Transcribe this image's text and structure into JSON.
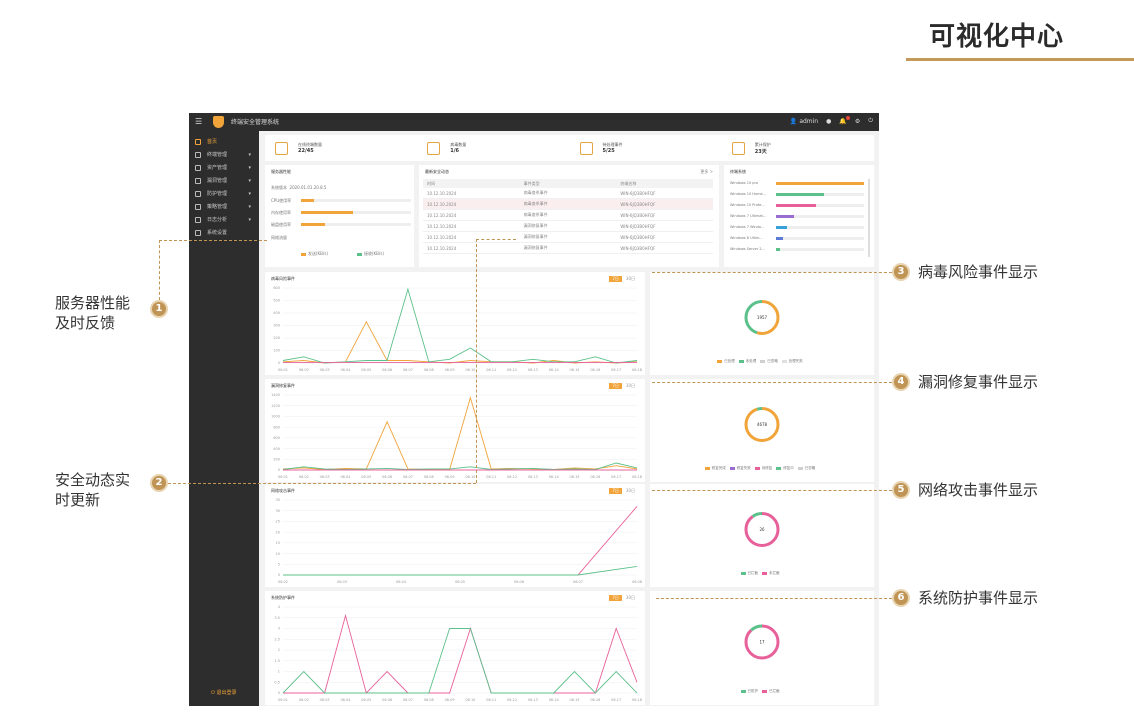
{
  "page": {
    "title": "可视化中心"
  },
  "app": {
    "name": "终端安全管理系统",
    "topbar": {
      "user": "admin",
      "icons": [
        "menu-icon",
        "logo-icon",
        "user-icon",
        "dot-icon",
        "bell-icon",
        "gear-icon",
        "power-icon"
      ]
    }
  },
  "sidebar": {
    "items": [
      {
        "label": "首页",
        "active": true
      },
      {
        "label": "终端管理",
        "caret": "▾"
      },
      {
        "label": "资产管理",
        "caret": "▾"
      },
      {
        "label": "漏洞管理",
        "caret": "▾"
      },
      {
        "label": "防护管理",
        "caret": "▾"
      },
      {
        "label": "策略管理",
        "caret": "▾"
      },
      {
        "label": "日志分析",
        "caret": "▾"
      },
      {
        "label": "系统设置"
      }
    ],
    "logout": "退出登录"
  },
  "stats": [
    {
      "label": "在线终端数量",
      "value": "22/45"
    },
    {
      "label": "病毒数量",
      "value": "1/6"
    },
    {
      "label": "待处理事件",
      "value": "5/25"
    },
    {
      "label": "累计保护",
      "value": "23天"
    }
  ],
  "server_panel": {
    "title": "服务器性能",
    "rows": [
      {
        "label": "系统版本",
        "value": "2020.01.01.20.8.5"
      },
      {
        "label": "CPU使用率",
        "fill": 0.12
      },
      {
        "label": "内存使用率",
        "fill": 0.47
      },
      {
        "label": "磁盘使用率",
        "fill": 0.22
      },
      {
        "label": "网络流量"
      }
    ],
    "legend": [
      "发送(KB/s)",
      "接收(KB/s)"
    ]
  },
  "dynamics_panel": {
    "title": "最新安全动态",
    "more": "更多 >",
    "headers": [
      "时间",
      "事件类型",
      "终端名称"
    ],
    "rows": [
      [
        "10.12.10.2024",
        "病毒查杀事件",
        "WIN-6JQ3B0HFQF"
      ],
      [
        "10.12.10.2024",
        "病毒查杀事件",
        "WIN-6JQ3B0HFQF"
      ],
      [
        "10.12.10.2024",
        "病毒查杀事件",
        "WIN-6JQ3B0HFQF"
      ],
      [
        "10.12.10.2024",
        "漏洞修复事件",
        "WIN-6JQ3B0HFQF"
      ],
      [
        "10.12.10.2024",
        "漏洞修复事件",
        "WIN-6JQ3B0HFQF"
      ],
      [
        "10.12.10.2024",
        "漏洞修复事件",
        "WIN-6JQ3B0HFQF"
      ]
    ]
  },
  "os_panel": {
    "title": "终端系统",
    "rows": [
      {
        "label": "Windows 10 pro",
        "fill": 1.0,
        "color": "#f0a43a"
      },
      {
        "label": "Windows 10 Home...",
        "fill": 0.55,
        "color": "#5cc08a"
      },
      {
        "label": "Windows 10 Profe...",
        "fill": 0.45,
        "color": "#e8609a"
      },
      {
        "label": "Windows 7 Ultimat...",
        "fill": 0.2,
        "color": "#9b6cd0"
      },
      {
        "label": "Windows 7 Windo...",
        "fill": 0.12,
        "color": "#3aa0d8"
      },
      {
        "label": "Windows 8 Ultim...",
        "fill": 0.08,
        "color": "#5b7bd6"
      },
      {
        "label": "Windows Server 2...",
        "fill": 0.04,
        "color": "#5cc08a"
      }
    ]
  },
  "charts": [
    {
      "title": "病毒风险事件",
      "toggle": [
        "7日",
        "30日"
      ],
      "ring_center": "1957",
      "legend": [
        {
          "name": "已处理",
          "color": "#f0a43a"
        },
        {
          "name": "未处理",
          "color": "#5cc08a"
        },
        {
          "name": "已忽略",
          "color": "#cfcfcf"
        },
        {
          "name": "处理失败",
          "color": "#e0e0e0"
        }
      ],
      "ring": [
        {
          "color": "#f0a43a",
          "value": 0.55
        },
        {
          "color": "#5cc08a",
          "value": 0.45
        }
      ]
    },
    {
      "title": "漏洞修复事件",
      "toggle": [
        "7日",
        "30日"
      ],
      "ring_center": "4678",
      "legend": [
        {
          "name": "修复完成",
          "color": "#f0a43a"
        },
        {
          "name": "修复失败",
          "color": "#9b6cd0"
        },
        {
          "name": "待修复",
          "color": "#e8609a"
        },
        {
          "name": "修复中",
          "color": "#5cc08a"
        },
        {
          "name": "已忽略",
          "color": "#cfcfcf"
        }
      ],
      "ring": [
        {
          "color": "#f0a43a",
          "value": 0.95
        },
        {
          "color": "#5cc08a",
          "value": 0.05
        }
      ]
    },
    {
      "title": "网络攻击事件",
      "toggle": [
        "7日",
        "30日"
      ],
      "ring_center": "26",
      "legend": [
        {
          "name": "已拦截",
          "color": "#5cc08a"
        },
        {
          "name": "未拦截",
          "color": "#e8609a"
        }
      ],
      "ring": [
        {
          "color": "#e8609a",
          "value": 0.9
        },
        {
          "color": "#5cc08a",
          "value": 0.1
        }
      ]
    },
    {
      "title": "系统防护事件",
      "toggle": [
        "7日",
        "30日"
      ],
      "ring_center": "17",
      "legend": [
        {
          "name": "已防护",
          "color": "#5cc08a"
        },
        {
          "name": "已拦截",
          "color": "#e8609a"
        }
      ],
      "ring": [
        {
          "color": "#e8609a",
          "value": 0.88
        },
        {
          "color": "#5cc08a",
          "value": 0.12
        }
      ]
    }
  ],
  "chart_data": [
    {
      "type": "line",
      "title": "病毒风险事件",
      "categories": [
        "06.01",
        "06.02",
        "06.03",
        "06.04",
        "06.05",
        "06.06",
        "06.07",
        "06.08",
        "06.09",
        "06.10",
        "06.11",
        "06.12",
        "06.13",
        "06.14",
        "06.15",
        "06.16",
        "06.17",
        "06.18"
      ],
      "ylim": [
        0,
        600
      ],
      "yticks": [
        "0",
        "100",
        "200",
        "300",
        "400",
        "500",
        "600"
      ],
      "series": [
        {
          "color": "#f0a43a",
          "values": [
            10,
            20,
            0,
            10,
            330,
            20,
            20,
            10,
            0,
            20,
            10,
            10,
            0,
            20,
            0,
            10,
            0,
            10
          ]
        },
        {
          "color": "#5cc08a",
          "values": [
            20,
            50,
            0,
            10,
            20,
            20,
            590,
            10,
            30,
            120,
            10,
            10,
            30,
            10,
            10,
            50,
            0,
            20
          ]
        },
        {
          "color": "#e8609a",
          "values": [
            5,
            5,
            5,
            5,
            5,
            5,
            5,
            5,
            5,
            5,
            5,
            5,
            5,
            5,
            5,
            5,
            5,
            5
          ]
        }
      ]
    },
    {
      "type": "line",
      "title": "漏洞修复事件",
      "categories": [
        "06.01",
        "06.02",
        "06.03",
        "06.04",
        "06.05",
        "06.06",
        "06.07",
        "06.08",
        "06.09",
        "06.10",
        "06.11",
        "06.12",
        "06.13",
        "06.14",
        "06.15",
        "06.16",
        "06.17",
        "06.18"
      ],
      "ylim": [
        0,
        1400
      ],
      "yticks": [
        "0",
        "200",
        "400",
        "600",
        "800",
        "1000",
        "1200",
        "1400"
      ],
      "series": [
        {
          "color": "#f0a43a",
          "values": [
            20,
            40,
            10,
            30,
            20,
            900,
            20,
            10,
            10,
            1350,
            20,
            30,
            20,
            10,
            40,
            20,
            80,
            20
          ]
        },
        {
          "color": "#5cc08a",
          "values": [
            10,
            60,
            20,
            10,
            20,
            30,
            10,
            20,
            20,
            60,
            10,
            20,
            30,
            10,
            20,
            10,
            130,
            40
          ]
        },
        {
          "color": "#e8609a",
          "values": [
            0,
            0,
            0,
            0,
            0,
            0,
            0,
            0,
            0,
            0,
            0,
            0,
            0,
            0,
            0,
            0,
            0,
            0
          ]
        }
      ]
    },
    {
      "type": "line",
      "title": "网络攻击事件",
      "categories": [
        "06.02",
        "06.03",
        "06.04",
        "06.05",
        "06.06",
        "06.07",
        "06.08"
      ],
      "ylim": [
        0,
        35
      ],
      "yticks": [
        "0",
        "5",
        "10",
        "15",
        "20",
        "25",
        "30",
        "35"
      ],
      "series": [
        {
          "color": "#e8609a",
          "values": [
            0,
            0,
            0,
            0,
            0,
            0,
            32
          ]
        },
        {
          "color": "#5cc08a",
          "values": [
            0,
            0,
            0,
            0,
            0,
            0,
            4
          ]
        }
      ]
    },
    {
      "type": "line",
      "title": "系统防护事件",
      "categories": [
        "06.01",
        "06.02",
        "06.03",
        "06.04",
        "06.05",
        "06.06",
        "06.07",
        "06.08",
        "06.09",
        "06.10",
        "06.11",
        "06.12",
        "06.13",
        "06.14",
        "06.15",
        "06.16",
        "06.17",
        "06.18"
      ],
      "ylim": [
        0,
        4
      ],
      "yticks": [
        "0",
        "0.5",
        "1",
        "1.5",
        "2",
        "2.5",
        "3",
        "3.5",
        "4"
      ],
      "series": [
        {
          "color": "#e8609a",
          "values": [
            0,
            0,
            0,
            3.6,
            0,
            1,
            0,
            0,
            0,
            3,
            0,
            0,
            0,
            0,
            0,
            0,
            3,
            0.5
          ]
        },
        {
          "color": "#5cc08a",
          "values": [
            0,
            1,
            0,
            0,
            0,
            0,
            0,
            0,
            3,
            3,
            0,
            0,
            0,
            0,
            1,
            0,
            1,
            0
          ]
        }
      ]
    }
  ],
  "annotations": [
    {
      "num": "1",
      "text1": "服务器性能",
      "text2": "及时反馈"
    },
    {
      "num": "2",
      "text1": "安全动态实",
      "text2": "时更新"
    },
    {
      "num": "3",
      "text1": "病毒风险事件显示"
    },
    {
      "num": "4",
      "text1": "漏洞修复事件显示"
    },
    {
      "num": "5",
      "text1": "网络攻击事件显示"
    },
    {
      "num": "6",
      "text1": "系统防护事件显示"
    }
  ]
}
